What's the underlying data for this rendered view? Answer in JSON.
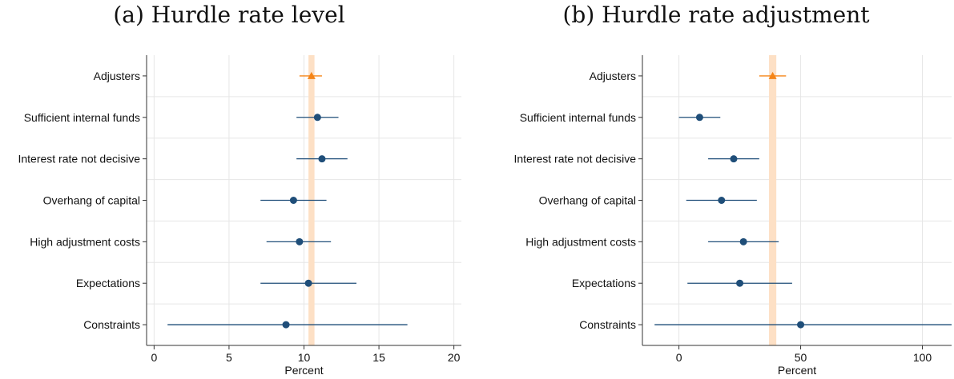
{
  "chart_data": [
    {
      "type": "scatter",
      "title": "(a) Hurdle rate level",
      "xlabel": "Percent",
      "xlim": [
        -0.5,
        20.5
      ],
      "xticks": [
        0,
        5,
        10,
        15,
        20
      ],
      "grid": true,
      "reference_band": {
        "center": 10.5,
        "low": 10.3,
        "high": 10.7
      },
      "categories": [
        "Adjusters",
        "Sufficient internal funds",
        "Interest rate not decisive",
        "Overhang of capital",
        "High adjustment costs",
        "Expectations",
        "Constraints"
      ],
      "estimates": [
        10.5,
        10.9,
        11.2,
        9.3,
        9.7,
        10.3,
        8.8
      ],
      "ci_low": [
        9.7,
        9.5,
        9.5,
        7.1,
        7.5,
        7.1,
        0.9
      ],
      "ci_high": [
        11.2,
        12.3,
        12.9,
        11.5,
        11.8,
        13.5,
        16.9
      ],
      "markers": [
        "triangle",
        "circle",
        "circle",
        "circle",
        "circle",
        "circle",
        "circle"
      ],
      "colors": {
        "adjusters": "#f58518",
        "others": "#1f4e79",
        "band": "#fde0c5"
      }
    },
    {
      "type": "scatter",
      "title": "(b) Hurdle rate adjustment",
      "xlabel": "Percent",
      "xlim": [
        -15,
        112
      ],
      "xticks": [
        0,
        50,
        100
      ],
      "grid": true,
      "reference_band": {
        "center": 38,
        "low": 37,
        "high": 40
      },
      "categories": [
        "Adjusters",
        "Sufficient internal funds",
        "Interest rate not decisive",
        "Overhang of capital",
        "High adjustment costs",
        "Expectations",
        "Constraints"
      ],
      "estimates": [
        38.5,
        8.5,
        22.5,
        17.5,
        26.5,
        25,
        50
      ],
      "ci_low": [
        33,
        0,
        12,
        3,
        12,
        3.5,
        -10
      ],
      "ci_high": [
        44,
        17,
        33,
        32,
        41,
        46.5,
        112
      ],
      "markers": [
        "triangle",
        "circle",
        "circle",
        "circle",
        "circle",
        "circle",
        "circle"
      ],
      "colors": {
        "adjusters": "#f58518",
        "others": "#1f4e79",
        "band": "#fde0c5"
      }
    }
  ]
}
